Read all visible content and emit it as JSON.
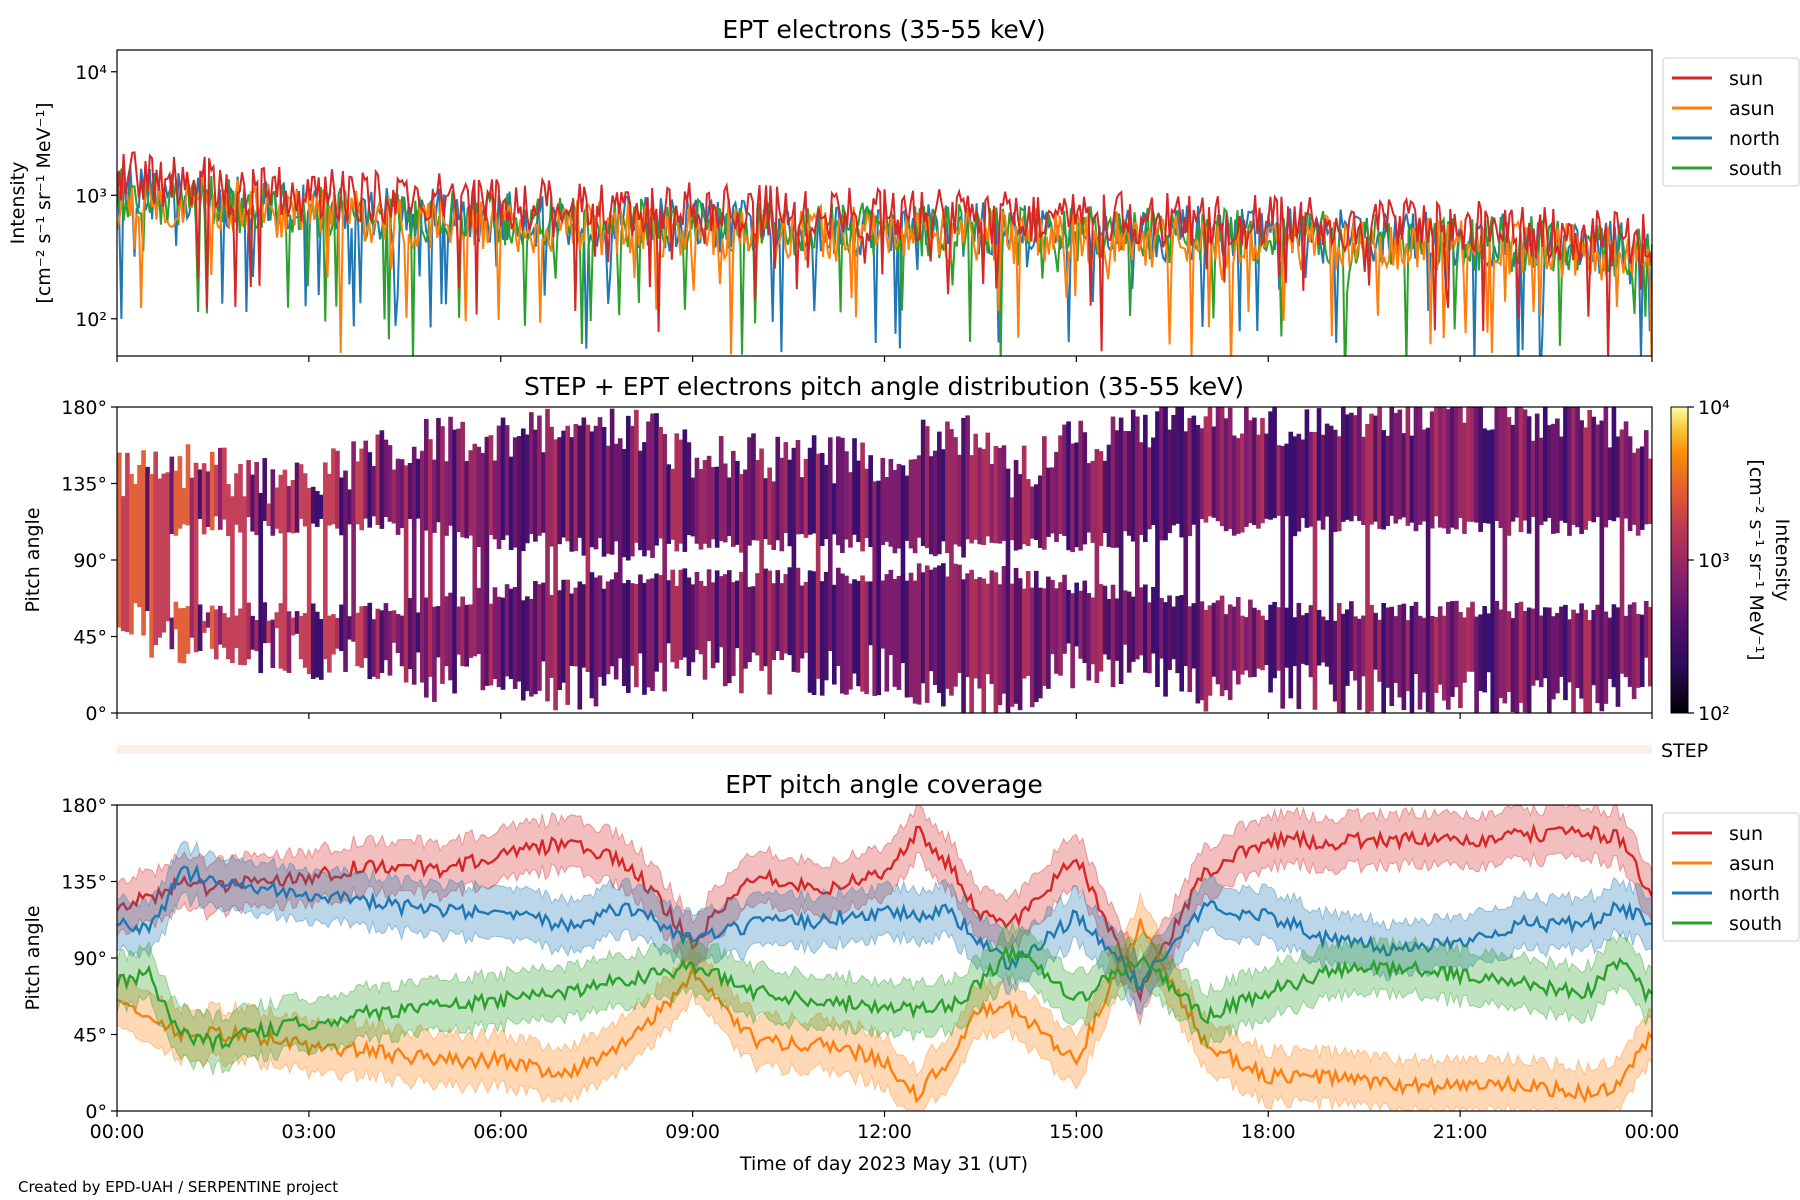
{
  "figure_caption": "Created by EPD-UAH / SERPENTINE project",
  "xlabel": "Time of day 2023 May 31 (UT)",
  "x_tick_labels": [
    "00:00",
    "03:00",
    "06:00",
    "09:00",
    "12:00",
    "15:00",
    "18:00",
    "21:00",
    "00:00"
  ],
  "step_label": "STEP",
  "colors": {
    "sun": "#d62728",
    "asun": "#ff7f0e",
    "north": "#1f77b4",
    "south": "#2ca02c",
    "step_bar": "#fdeee8"
  },
  "chart_data": [
    {
      "type": "line",
      "title": "EPT electrons (35-55 keV)",
      "ylabel": "Intensity",
      "yunit": "[cm⁻² s⁻¹ sr⁻¹ MeV⁻¹]",
      "yscale": "log",
      "ylim": [
        50,
        15000
      ],
      "y_tick_labels": [
        "10²",
        "10³",
        "10⁴"
      ],
      "y_tick_values": [
        100,
        1000,
        10000
      ],
      "xlim_hours": [
        0,
        24
      ],
      "legend_position": "outside-right",
      "series": [
        {
          "name": "sun",
          "color": "#d62728",
          "x_hours": [
            0,
            1,
            2,
            3,
            4,
            5,
            6,
            7,
            8,
            9,
            10,
            11,
            12,
            13,
            14,
            15,
            16,
            17,
            18,
            19,
            20,
            21,
            22,
            23,
            24
          ],
          "values": [
            1400,
            1300,
            1150,
            1000,
            950,
            900,
            850,
            800,
            780,
            760,
            740,
            720,
            700,
            680,
            660,
            650,
            640,
            620,
            600,
            580,
            560,
            540,
            520,
            480,
            450
          ]
        },
        {
          "name": "asun",
          "color": "#ff7f0e",
          "x_hours": [
            0,
            1,
            2,
            3,
            4,
            5,
            6,
            7,
            8,
            9,
            10,
            11,
            12,
            13,
            14,
            15,
            16,
            17,
            18,
            19,
            20,
            21,
            22,
            23,
            24
          ],
          "values": [
            1000,
            900,
            800,
            700,
            650,
            600,
            570,
            550,
            540,
            520,
            500,
            490,
            480,
            470,
            460,
            450,
            440,
            430,
            420,
            410,
            400,
            390,
            380,
            350,
            320
          ]
        },
        {
          "name": "north",
          "color": "#1f77b4",
          "x_hours": [
            0,
            1,
            2,
            3,
            4,
            5,
            6,
            7,
            8,
            9,
            10,
            11,
            12,
            13,
            14,
            15,
            16,
            17,
            18,
            19,
            20,
            21,
            22,
            23,
            24
          ],
          "values": [
            1100,
            950,
            850,
            780,
            720,
            680,
            650,
            620,
            600,
            580,
            560,
            550,
            540,
            530,
            520,
            510,
            500,
            490,
            480,
            460,
            450,
            430,
            420,
            390,
            360
          ]
        },
        {
          "name": "south",
          "color": "#2ca02c",
          "x_hours": [
            0,
            1,
            2,
            3,
            4,
            5,
            6,
            7,
            8,
            9,
            10,
            11,
            12,
            13,
            14,
            15,
            16,
            17,
            18,
            19,
            20,
            21,
            22,
            23,
            24
          ],
          "values": [
            1050,
            920,
            820,
            750,
            700,
            660,
            630,
            600,
            580,
            560,
            540,
            530,
            520,
            510,
            500,
            490,
            480,
            470,
            460,
            440,
            430,
            410,
            400,
            370,
            340
          ]
        }
      ]
    },
    {
      "type": "heatmap",
      "title": "STEP + EPT electrons pitch angle distribution (35-55 keV)",
      "ylabel": "Pitch angle",
      "ylim_deg": [
        0,
        180
      ],
      "y_tick_labels": [
        "0°",
        "45°",
        "90°",
        "135°",
        "180°"
      ],
      "xlim_hours": [
        0,
        24
      ],
      "colorscale": "inferno (log)",
      "colorbar": {
        "label": "Intensity",
        "unit": "[cm⁻² s⁻¹ sr⁻¹ MeV⁻¹]",
        "range": [
          100,
          10000
        ],
        "tick_labels": [
          "10²",
          "10³",
          "10⁴"
        ]
      },
      "coverage_bounds": {
        "x_hours": [
          0,
          1,
          2,
          3,
          4,
          5,
          6,
          7,
          8,
          9,
          10,
          11,
          12,
          13,
          14,
          15,
          16,
          17,
          18,
          19,
          20,
          21,
          22,
          23,
          24
        ],
        "upper_deg": [
          140,
          145,
          140,
          135,
          150,
          160,
          160,
          170,
          170,
          150,
          150,
          150,
          145,
          170,
          140,
          160,
          165,
          180,
          170,
          170,
          175,
          180,
          175,
          175,
          160
        ],
        "lower_deg": [
          55,
          40,
          35,
          35,
          30,
          20,
          20,
          15,
          20,
          30,
          25,
          25,
          25,
          10,
          10,
          30,
          25,
          15,
          15,
          15,
          10,
          10,
          10,
          5,
          30
        ],
        "gap_upper_deg": [
          110,
          110,
          110,
          110,
          110,
          110,
          100,
          100,
          95,
          100,
          100,
          100,
          100,
          95,
          100,
          100,
          105,
          110,
          110,
          110,
          110,
          110,
          110,
          110,
          110
        ],
        "gap_lower_deg": [
          60,
          60,
          60,
          60,
          60,
          65,
          70,
          75,
          80,
          80,
          80,
          80,
          80,
          85,
          80,
          75,
          70,
          65,
          60,
          60,
          60,
          60,
          60,
          60,
          60
        ]
      }
    },
    {
      "type": "line",
      "title": "EPT pitch angle coverage",
      "ylabel": "Pitch angle",
      "ylim_deg": [
        0,
        180
      ],
      "y_tick_labels": [
        "0°",
        "45°",
        "90°",
        "135°",
        "180°"
      ],
      "xlim_hours": [
        0,
        24
      ],
      "legend_position": "outside-right",
      "band_halfwidth_deg": 15,
      "series": [
        {
          "name": "sun",
          "color": "#d62728",
          "x_hours": [
            0,
            0.5,
            1,
            1.5,
            2,
            3,
            4,
            5,
            6,
            7,
            8,
            9,
            10,
            11,
            12,
            12.5,
            13,
            13.5,
            14,
            15,
            16,
            17,
            18,
            19,
            20,
            21,
            22,
            23,
            23.5,
            24
          ],
          "values": [
            120,
            125,
            135,
            130,
            135,
            138,
            145,
            142,
            150,
            158,
            145,
            100,
            140,
            130,
            140,
            165,
            145,
            115,
            110,
            150,
            70,
            140,
            160,
            158,
            160,
            158,
            162,
            165,
            160,
            125
          ]
        },
        {
          "name": "asun",
          "color": "#ff7f0e",
          "x_hours": [
            0,
            0.5,
            1,
            1.5,
            2,
            3,
            4,
            5,
            6,
            7,
            8,
            9,
            10,
            11,
            12,
            12.5,
            13,
            13.5,
            14,
            15,
            16,
            17,
            18,
            19,
            20,
            21,
            22,
            23,
            23.5,
            24
          ],
          "values": [
            65,
            55,
            45,
            45,
            45,
            38,
            35,
            30,
            30,
            22,
            40,
            80,
            40,
            40,
            30,
            10,
            30,
            60,
            60,
            30,
            110,
            40,
            20,
            20,
            15,
            15,
            15,
            10,
            15,
            45
          ]
        },
        {
          "name": "north",
          "color": "#1f77b4",
          "x_hours": [
            0,
            0.5,
            1,
            1.5,
            2,
            3,
            4,
            5,
            6,
            7,
            8,
            9,
            10,
            11,
            12,
            12.5,
            13,
            13.5,
            14,
            15,
            16,
            17,
            18,
            19,
            20,
            21,
            22,
            23,
            23.5,
            24
          ],
          "values": [
            110,
            105,
            140,
            138,
            132,
            128,
            122,
            118,
            115,
            110,
            120,
            100,
            110,
            112,
            118,
            115,
            118,
            100,
            85,
            115,
            75,
            120,
            115,
            100,
            95,
            100,
            110,
            110,
            120,
            110
          ]
        },
        {
          "name": "south",
          "color": "#2ca02c",
          "x_hours": [
            0,
            0.5,
            1,
            1.5,
            2,
            3,
            4,
            5,
            6,
            7,
            8,
            9,
            10,
            11,
            12,
            12.5,
            13,
            13.5,
            14,
            15,
            16,
            17,
            18,
            19,
            20,
            21,
            22,
            23,
            23.5,
            24
          ],
          "values": [
            75,
            80,
            45,
            40,
            45,
            52,
            58,
            62,
            65,
            70,
            78,
            85,
            70,
            65,
            62,
            60,
            62,
            75,
            95,
            65,
            90,
            55,
            70,
            82,
            85,
            80,
            75,
            70,
            90,
            65
          ]
        }
      ]
    }
  ]
}
